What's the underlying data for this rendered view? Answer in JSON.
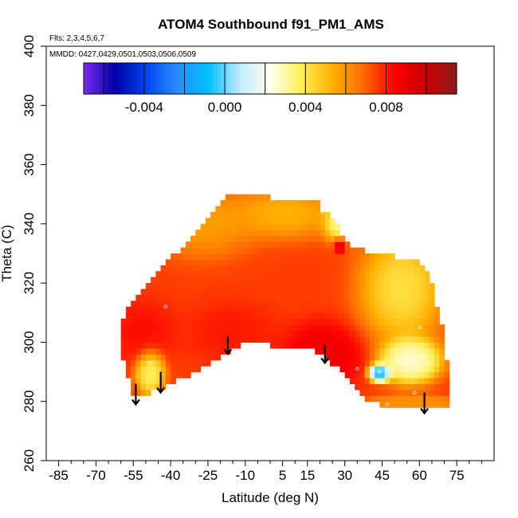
{
  "chart_data": {
    "type": "heatmap",
    "title": "ATOM4 Southbound f91_PM1_AMS",
    "flights_label": "Flts: 2,3,4,5,6,7",
    "dates_label": "MMDD: 0427,0429,0501,0503,0506,0509",
    "xlabel": "Latitude (deg N)",
    "ylabel": "Theta (C)",
    "xlim": [
      -90,
      90
    ],
    "ylim": [
      260,
      400
    ],
    "x_tick_values": [
      -85,
      -70,
      -55,
      -40,
      -25,
      -10,
      5,
      15,
      30,
      45,
      60,
      75
    ],
    "x_tick_labels": [
      "-85",
      "-70",
      "-55",
      "-40",
      "-25",
      "-10",
      "5",
      "15",
      "30",
      "45",
      "60",
      "75"
    ],
    "x_minor_ticks": [
      -80,
      -75,
      -65,
      -60,
      -50,
      -45,
      -35,
      -30,
      -20,
      -15,
      -5,
      0,
      10,
      20,
      25,
      35,
      40,
      50,
      55,
      65,
      70,
      80,
      85
    ],
    "y_tick_values": [
      260,
      280,
      300,
      320,
      340,
      360,
      380,
      400
    ],
    "y_tick_labels": [
      "260",
      "280",
      "300",
      "320",
      "340",
      "360",
      "380",
      "400"
    ],
    "colorbar": {
      "range": [
        -0.007,
        0.0115
      ],
      "tick_values": [
        -0.004,
        0.0,
        0.004,
        0.008
      ],
      "tick_labels": [
        "-0.004",
        "0.000",
        "0.004",
        "0.008"
      ],
      "separators": [
        -0.006,
        -0.004,
        -0.002,
        0.0,
        0.002,
        0.004,
        0.006,
        0.008,
        0.01
      ],
      "colors": [
        "#7b2cf0",
        "#0000a8",
        "#0044ee",
        "#2a8cff",
        "#00bfff",
        "#bfeaff",
        "#ffffee",
        "#ffee55",
        "#ffb000",
        "#ff6a00",
        "#ff0000",
        "#cc0000",
        "#8b1a1a"
      ]
    },
    "domain_outline": [
      [
        -60,
        307
      ],
      [
        -57,
        312
      ],
      [
        -52,
        317
      ],
      [
        -45,
        323
      ],
      [
        -38,
        330
      ],
      [
        -30,
        337
      ],
      [
        -22,
        345
      ],
      [
        -15,
        351
      ],
      [
        -10,
        350
      ],
      [
        0,
        349
      ],
      [
        10,
        348
      ],
      [
        20,
        348
      ],
      [
        21,
        345
      ],
      [
        25,
        343
      ],
      [
        28,
        338
      ],
      [
        32,
        333
      ],
      [
        40,
        330
      ],
      [
        50,
        329
      ],
      [
        58,
        329
      ],
      [
        62,
        325
      ],
      [
        65,
        320
      ],
      [
        67,
        312
      ],
      [
        70,
        303
      ],
      [
        71,
        295
      ],
      [
        72,
        285
      ],
      [
        72,
        279
      ],
      [
        62,
        277
      ],
      [
        50,
        278
      ],
      [
        40,
        280
      ],
      [
        33,
        287
      ],
      [
        25,
        293
      ],
      [
        18,
        297
      ],
      [
        10,
        299
      ],
      [
        0,
        299
      ],
      [
        -8,
        301
      ],
      [
        -15,
        298
      ],
      [
        -22,
        294
      ],
      [
        -30,
        290
      ],
      [
        -38,
        287
      ],
      [
        -45,
        284
      ],
      [
        -52,
        281
      ],
      [
        -55,
        282
      ],
      [
        -58,
        290
      ],
      [
        -60,
        298
      ]
    ],
    "field_components": [
      {
        "lat": -5,
        "theta": 318,
        "value": 0.0075,
        "spread_lat": 55,
        "spread_theta": 25
      },
      {
        "lat": 20,
        "theta": 298,
        "value": 0.0095,
        "spread_lat": 12,
        "spread_theta": 8
      },
      {
        "lat": -50,
        "theta": 305,
        "value": 0.0085,
        "spread_lat": 10,
        "spread_theta": 8
      },
      {
        "lat": -15,
        "theta": 305,
        "value": 0.0085,
        "spread_lat": 15,
        "spread_theta": 8
      },
      {
        "lat": 5,
        "theta": 342,
        "value": 0.0045,
        "spread_lat": 15,
        "spread_theta": 6
      },
      {
        "lat": -25,
        "theta": 338,
        "value": 0.005,
        "spread_lat": 15,
        "spread_theta": 8
      },
      {
        "lat": 28,
        "theta": 340,
        "value": 0.0015,
        "spread_lat": 5,
        "spread_theta": 5
      },
      {
        "lat": 50,
        "theta": 318,
        "value": 0.003,
        "spread_lat": 12,
        "spread_theta": 12
      },
      {
        "lat": 55,
        "theta": 295,
        "value": 0.002,
        "spread_lat": 8,
        "spread_theta": 5
      },
      {
        "lat": 44,
        "theta": 290,
        "value": -0.002,
        "spread_lat": 3,
        "spread_theta": 2
      },
      {
        "lat": -48,
        "theta": 291,
        "value": 0.003,
        "spread_lat": 4,
        "spread_theta": 5
      },
      {
        "lat": 28,
        "theta": 333,
        "value": 0.011,
        "spread_lat": 2,
        "spread_theta": 2
      },
      {
        "lat": 55,
        "theta": 279,
        "value": 0.006,
        "spread_lat": 10,
        "spread_theta": 2
      }
    ],
    "markers": [
      {
        "lat": -42,
        "theta": 312
      },
      {
        "lat": -48,
        "theta": 293
      },
      {
        "lat": 21,
        "theta": 344
      },
      {
        "lat": 35,
        "theta": 291
      },
      {
        "lat": 44,
        "theta": 290
      },
      {
        "lat": 55,
        "theta": 293
      },
      {
        "lat": 60,
        "theta": 305
      },
      {
        "lat": 47,
        "theta": 279
      },
      {
        "lat": 58,
        "theta": 283
      }
    ],
    "arrows": [
      {
        "lat": -54,
        "theta_from": 286,
        "theta_to": 279
      },
      {
        "lat": -44,
        "theta_from": 290,
        "theta_to": 283
      },
      {
        "lat": -17,
        "theta_from": 302,
        "theta_to": 296
      },
      {
        "lat": 22,
        "theta_from": 299,
        "theta_to": 293
      },
      {
        "lat": 62,
        "theta_from": 283,
        "theta_to": 276
      }
    ]
  }
}
